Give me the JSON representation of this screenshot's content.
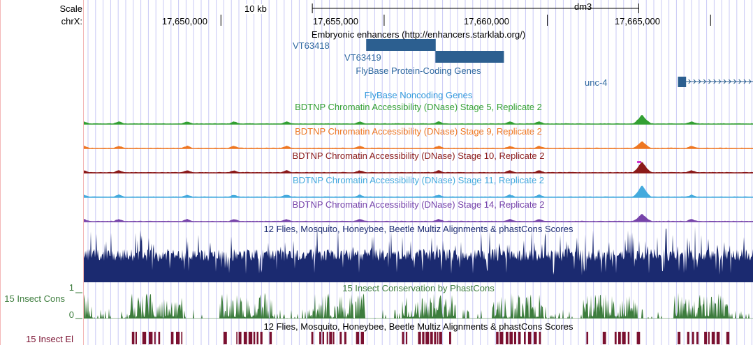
{
  "colors": {
    "guide": "#c9c9f5",
    "enhancer": "#2c5f90",
    "flybase_link": "#2f68a0",
    "noncoding": "#3399dd",
    "stage5": "#33a033",
    "stage9": "#ee7722",
    "stage10": "#8b1a1a",
    "stage10_peak": "#cc33cc",
    "stage11": "#44aadd",
    "stage14": "#7744aa",
    "multiz": "#1b2a70",
    "phastcons": "#3d7d3d",
    "elements": "#7a1030",
    "pink": "#f3b6b6"
  },
  "left_labels": {
    "scale": "Scale",
    "chr": "chrX:",
    "cons_track": "15 Insect Cons",
    "el_track": "15 Insect El",
    "cons_max": "1",
    "cons_min": "0"
  },
  "ruler": {
    "scale_text": "10 kb",
    "assembly": "dm3",
    "ticks": [
      "17,650,000",
      "17,655,000",
      "17,660,000",
      "17,665,000"
    ]
  },
  "tracks": {
    "enhancers_title": "Embryonic enhancers (http://enhancers.starklab.org/)",
    "enhancer_items": [
      "VT63418",
      "VT63419"
    ],
    "flybase_coding_title": "FlyBase Protein-Coding Genes",
    "gene_label": "unc-4",
    "flybase_noncoding_title": "FlyBase Noncoding Genes",
    "dnase_titles": [
      "BDTNP Chromatin Accessibility (DNase) Stage 5, Replicate 2",
      "BDTNP Chromatin Accessibility (DNase) Stage 9, Replicate 2",
      "BDTNP Chromatin Accessibility (DNase) Stage 10, Replicate 2",
      "BDTNP Chromatin Accessibility (DNase) Stage 11, Replicate 2",
      "BDTNP Chromatin Accessibility (DNase) Stage 14, Replicate 2"
    ],
    "multiz_title": "12 Flies, Mosquito, Honeybee, Beetle Multiz Alignments & phastCons Scores",
    "phastcons_title": "15 Insect Conservation by PhastCons",
    "elements_title": "12 Flies, Mosquito, Honeybee, Beetle Multiz Alignments & phastCons Scores"
  },
  "genome": {
    "view_start": 17645800,
    "view_end": 17666300,
    "scale_bar_start": 17652800,
    "scale_bar_end": 17662800,
    "enhancers": [
      {
        "name": "VT63418",
        "start": 17654450,
        "end": 17656580
      },
      {
        "name": "VT63419",
        "start": 17656570,
        "end": 17658670
      }
    ],
    "gene": {
      "name": "unc-4",
      "start": 17664000,
      "end": 17666300,
      "strand": "+",
      "exon_start": 17664000,
      "exon_end": 17664250
    }
  }
}
